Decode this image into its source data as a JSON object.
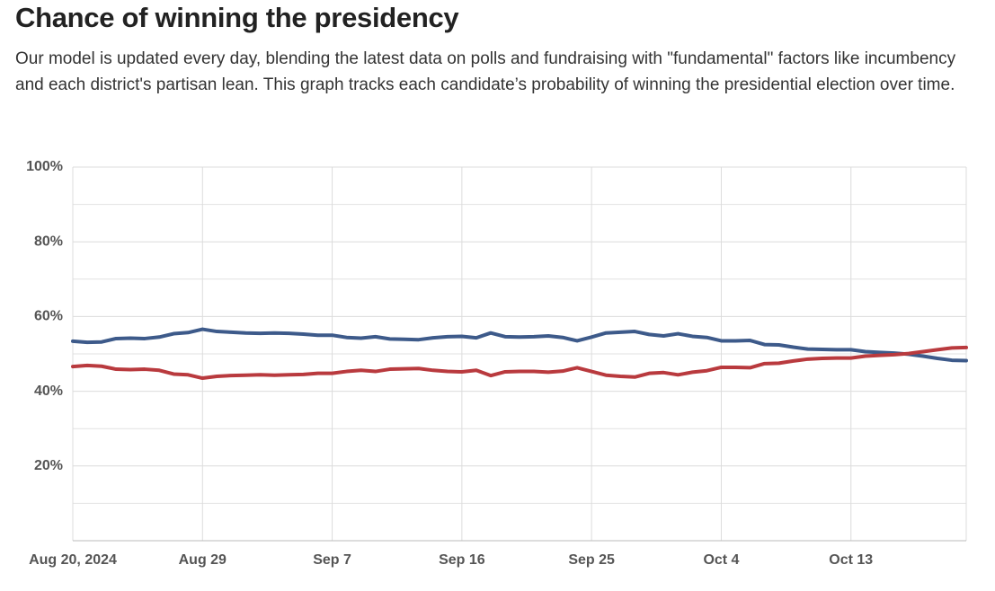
{
  "chart_data": {
    "type": "line",
    "title": "Chance of winning the presidency",
    "subtitle": "Our model is updated every day, blending the latest data on polls and fundraising with \"fundamental\" factors like incumbency and each district's partisan lean. This graph tracks each candidate’s probability of winning the presidential election over time.",
    "x": [
      "2024-08-20",
      "2024-08-21",
      "2024-08-22",
      "2024-08-23",
      "2024-08-24",
      "2024-08-25",
      "2024-08-26",
      "2024-08-27",
      "2024-08-28",
      "2024-08-29",
      "2024-08-30",
      "2024-08-31",
      "2024-09-01",
      "2024-09-02",
      "2024-09-03",
      "2024-09-04",
      "2024-09-05",
      "2024-09-06",
      "2024-09-07",
      "2024-09-08",
      "2024-09-09",
      "2024-09-10",
      "2024-09-11",
      "2024-09-12",
      "2024-09-13",
      "2024-09-14",
      "2024-09-15",
      "2024-09-16",
      "2024-09-17",
      "2024-09-18",
      "2024-09-19",
      "2024-09-20",
      "2024-09-21",
      "2024-09-22",
      "2024-09-23",
      "2024-09-24",
      "2024-09-25",
      "2024-09-26",
      "2024-09-27",
      "2024-09-28",
      "2024-09-29",
      "2024-09-30",
      "2024-10-01",
      "2024-10-02",
      "2024-10-03",
      "2024-10-04",
      "2024-10-05",
      "2024-10-06",
      "2024-10-07",
      "2024-10-08",
      "2024-10-09",
      "2024-10-10",
      "2024-10-11",
      "2024-10-12",
      "2024-10-13",
      "2024-10-14",
      "2024-10-15",
      "2024-10-16",
      "2024-10-17",
      "2024-10-18",
      "2024-10-19",
      "2024-10-20",
      "2024-10-21"
    ],
    "series": [
      {
        "color": "#3d5a8a",
        "values": [
          53.4,
          53.1,
          53.2,
          54.1,
          54.2,
          54.1,
          54.5,
          55.4,
          55.7,
          56.6,
          56.0,
          55.8,
          55.6,
          55.5,
          55.6,
          55.5,
          55.3,
          55.0,
          55.0,
          54.4,
          54.2,
          54.6,
          54.0,
          53.9,
          53.8,
          54.3,
          54.6,
          54.7,
          54.3,
          55.6,
          54.6,
          54.5,
          54.6,
          54.8,
          54.4,
          53.5,
          54.5,
          55.6,
          55.8,
          56.0,
          55.2,
          54.8,
          55.4,
          54.7,
          54.4,
          53.5,
          53.5,
          53.6,
          52.5,
          52.4,
          51.8,
          51.3,
          51.2,
          51.1,
          51.1,
          50.6,
          50.4,
          50.2,
          49.9,
          49.4,
          48.8,
          48.3,
          48.2
        ]
      },
      {
        "color": "#b93a3e",
        "values": [
          46.6,
          46.9,
          46.7,
          45.9,
          45.8,
          45.9,
          45.6,
          44.6,
          44.4,
          43.5,
          44.0,
          44.2,
          44.3,
          44.4,
          44.3,
          44.4,
          44.5,
          44.8,
          44.8,
          45.3,
          45.6,
          45.3,
          45.9,
          46.0,
          46.1,
          45.6,
          45.3,
          45.2,
          45.6,
          44.2,
          45.2,
          45.3,
          45.3,
          45.1,
          45.4,
          46.3,
          45.3,
          44.3,
          44.0,
          43.8,
          44.8,
          45.0,
          44.4,
          45.1,
          45.5,
          46.4,
          46.4,
          46.3,
          47.4,
          47.5,
          48.1,
          48.6,
          48.8,
          48.9,
          48.9,
          49.4,
          49.6,
          49.8,
          50.1,
          50.6,
          51.1,
          51.6,
          51.7
        ]
      }
    ],
    "xlim": [
      "2024-08-20",
      "2024-10-21"
    ],
    "xticks": [
      {
        "value": "2024-08-20",
        "label": "Aug 20, 2024"
      },
      {
        "value": "2024-08-29",
        "label": "Aug 29"
      },
      {
        "value": "2024-09-07",
        "label": "Sep 7"
      },
      {
        "value": "2024-09-16",
        "label": "Sep 16"
      },
      {
        "value": "2024-09-25",
        "label": "Sep 25"
      },
      {
        "value": "2024-10-04",
        "label": "Oct 4"
      },
      {
        "value": "2024-10-13",
        "label": "Oct 13"
      }
    ],
    "ylim": [
      0,
      100
    ],
    "yticks": [
      {
        "value": 20,
        "label": "20%"
      },
      {
        "value": 40,
        "label": "40%"
      },
      {
        "value": 60,
        "label": "60%"
      },
      {
        "value": 80,
        "label": "80%"
      },
      {
        "value": 100,
        "label": "100%"
      }
    ],
    "minor_yticks": [
      10,
      30,
      50,
      70,
      90
    ],
    "grid": true
  }
}
